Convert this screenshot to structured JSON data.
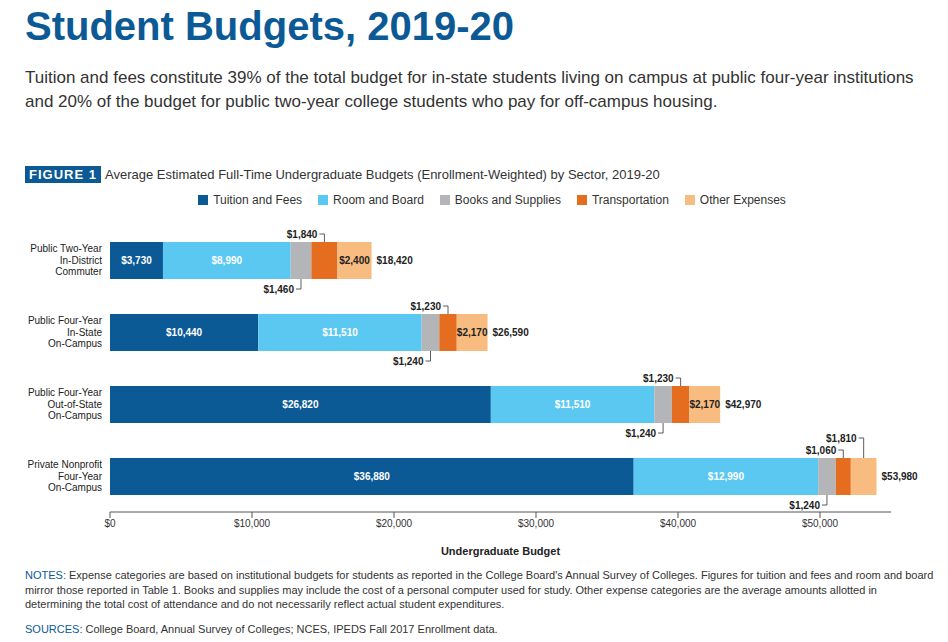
{
  "chart_data": {
    "type": "bar",
    "orientation": "horizontal",
    "stacked": true,
    "data_labels": true,
    "legend": "top",
    "grid": false,
    "title": "Student Budgets, 2019-20",
    "subtitle": "Tuition and fees constitute 39% of the total budget for in-state students living on campus at public four-year institutions and 20% of the budget for public two-year college students who pay for off-campus housing.",
    "figure_label": "FIGURE 1",
    "caption": "Average Estimated Full-Time Undergraduate Budgets (Enrollment-Weighted) by Sector, 2019-20",
    "categories": [
      "Public Two-Year\nIn-District\nCommuter",
      "Public Four-Year\nIn-State\nOn-Campus",
      "Public Four-Year\nOut-of-State\nOn-Campus",
      "Private Nonprofit\nFour-Year\nOn-Campus"
    ],
    "series": [
      {
        "name": "Tuition and Fees",
        "color": "#0b5a96",
        "values": [
          3730,
          10440,
          26820,
          36880
        ],
        "value_labels": [
          "$3,730",
          "$10,440",
          "$26,820",
          "$36,880"
        ]
      },
      {
        "name": "Room and Board",
        "color": "#5bc8f2",
        "values": [
          8990,
          11510,
          11510,
          12990
        ],
        "value_labels": [
          "$8,990",
          "$11,510",
          "$11,510",
          "$12,990"
        ]
      },
      {
        "name": "Books and Supplies",
        "color": "#b3b5b8",
        "values": [
          1460,
          1240,
          1240,
          1240
        ],
        "value_labels": [
          "$1,460",
          "$1,240",
          "$1,240",
          "$1,240"
        ]
      },
      {
        "name": "Transportation",
        "color": "#e56d1f",
        "values": [
          1840,
          1230,
          1230,
          1060
        ],
        "value_labels": [
          "$1,840",
          "$1,230",
          "$1,230",
          "$1,060"
        ]
      },
      {
        "name": "Other Expenses",
        "color": "#f8bb80",
        "values": [
          2400,
          2170,
          2170,
          1810
        ],
        "value_labels": [
          "$2,400",
          "$2,170",
          "$2,170",
          "$1,810"
        ]
      }
    ],
    "totals": [
      18420,
      26590,
      42970,
      53980
    ],
    "total_labels": [
      "$18,420",
      "$26,590",
      "$42,970",
      "$53,980"
    ],
    "xlim": [
      0,
      55000
    ],
    "xticks": [
      {
        "value": 0,
        "label": "$0"
      },
      {
        "value": 10000,
        "label": "$10,000"
      },
      {
        "value": 20000,
        "label": "$20,000"
      },
      {
        "value": 30000,
        "label": "$30,000"
      },
      {
        "value": 40000,
        "label": "$40,000"
      },
      {
        "value": 50000,
        "label": "$50,000"
      }
    ],
    "x_label": "Undergraduate Budget",
    "notes": {
      "label": "NOTES:",
      "text": "Expense categories are based on institutional budgets for students as reported in the College Board's Annual Survey of Colleges. Figures for tuition and fees and room and board mirror those reported in Table 1. Books and supplies may include the cost of a personal computer used for study. Other expense categories are the average amounts allotted in determining the total cost of attendance and do not necessarily reflect actual student expenditures."
    },
    "sources": {
      "label": "SOURCES:",
      "text": "College Board, Annual Survey of Colleges; NCES, IPEDS Fall 2017 Enrollment data."
    }
  }
}
